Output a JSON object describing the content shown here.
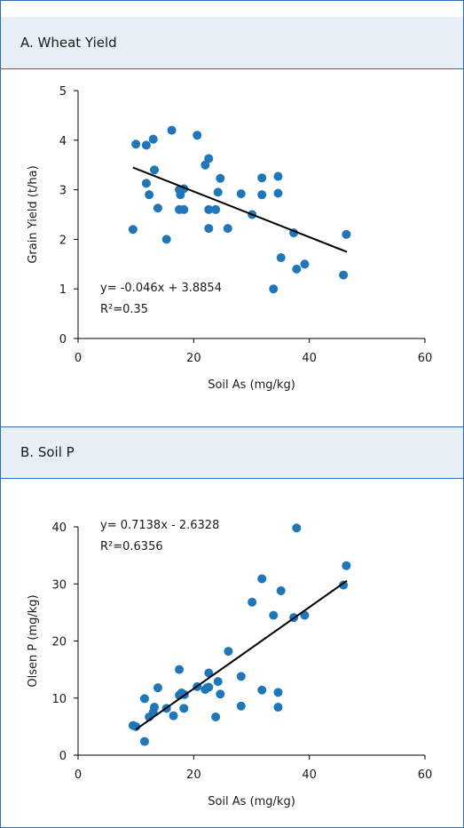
{
  "colors": {
    "points": "#1f76b9",
    "line": "#000000",
    "header_bg": "#e8eff7",
    "border": "#2e6db4"
  },
  "chart_data": [
    {
      "type": "scatter",
      "title": "A. Wheat Yield",
      "xlabel": "Soil As (mg/kg)",
      "ylabel": "Grain Yield (t/ha)",
      "xlim": [
        0,
        60
      ],
      "ylim": [
        0,
        5
      ],
      "xticks": [
        "0",
        "20",
        "40",
        "60"
      ],
      "yticks": [
        "0",
        "1",
        "2",
        "3",
        "4",
        "5"
      ],
      "grid": false,
      "trendline": {
        "slope": -0.046,
        "intercept": 3.8854,
        "x_range": [
          9.5,
          46.5
        ]
      },
      "annotations": [
        "y= -0.046x + 3.8854",
        "R²=0.35"
      ],
      "points": [
        [
          9.5,
          2.2
        ],
        [
          10,
          3.92
        ],
        [
          11.8,
          3.9
        ],
        [
          11.8,
          3.13
        ],
        [
          12.3,
          2.9
        ],
        [
          13,
          4.02
        ],
        [
          13.2,
          3.4
        ],
        [
          13.8,
          2.63
        ],
        [
          15.3,
          2.0
        ],
        [
          16.2,
          4.2
        ],
        [
          17.5,
          3.0
        ],
        [
          17.5,
          2.6
        ],
        [
          17.7,
          2.9
        ],
        [
          18.3,
          3.02
        ],
        [
          18.3,
          2.6
        ],
        [
          20.6,
          4.1
        ],
        [
          22,
          3.5
        ],
        [
          22.6,
          3.63
        ],
        [
          22.6,
          2.6
        ],
        [
          22.6,
          2.22
        ],
        [
          23.8,
          2.6
        ],
        [
          24.2,
          2.95
        ],
        [
          24.6,
          3.23
        ],
        [
          25.9,
          2.22
        ],
        [
          28.2,
          2.92
        ],
        [
          30.1,
          2.5
        ],
        [
          31.8,
          3.24
        ],
        [
          31.8,
          2.9
        ],
        [
          33.8,
          1.0
        ],
        [
          34.6,
          3.27
        ],
        [
          34.6,
          2.93
        ],
        [
          35.1,
          1.63
        ],
        [
          37.3,
          2.13
        ],
        [
          37.8,
          1.4
        ],
        [
          39.2,
          1.5
        ],
        [
          45.9,
          1.28
        ],
        [
          46.4,
          2.1
        ]
      ]
    },
    {
      "type": "scatter",
      "title": "B. Soil P",
      "xlabel": "Soil As (mg/kg)",
      "ylabel": "Olsen P (mg/kg)",
      "xlim": [
        0,
        60
      ],
      "ylim": [
        0,
        40
      ],
      "xticks": [
        "0",
        "20",
        "40",
        "60"
      ],
      "yticks": [
        "0",
        "10",
        "20",
        "30",
        "40"
      ],
      "grid": false,
      "trendline": {
        "slope": 0.7138,
        "intercept": -2.6328,
        "x_range": [
          10,
          46.5
        ]
      },
      "annotations": [
        "y= 0.7138x - 2.6328",
        "R²=0.6356"
      ],
      "points": [
        [
          9.5,
          5.2
        ],
        [
          10,
          5.0
        ],
        [
          11.5,
          2.4
        ],
        [
          11.5,
          9.9
        ],
        [
          12.3,
          6.7
        ],
        [
          13,
          7.5
        ],
        [
          13.2,
          8.4
        ],
        [
          13.8,
          11.8
        ],
        [
          15.3,
          8.2
        ],
        [
          16.5,
          6.9
        ],
        [
          17.5,
          15.0
        ],
        [
          17.5,
          10.5
        ],
        [
          17.9,
          10.9
        ],
        [
          18.3,
          8.2
        ],
        [
          18.4,
          10.6
        ],
        [
          20.6,
          12.0
        ],
        [
          22,
          11.5
        ],
        [
          22.3,
          11.8
        ],
        [
          22.6,
          14.4
        ],
        [
          22.6,
          11.9
        ],
        [
          23.8,
          6.7
        ],
        [
          24.2,
          12.9
        ],
        [
          24.6,
          10.7
        ],
        [
          26,
          18.2
        ],
        [
          28.2,
          13.8
        ],
        [
          28.2,
          8.6
        ],
        [
          30.1,
          26.8
        ],
        [
          31.8,
          30.9
        ],
        [
          31.8,
          11.4
        ],
        [
          33.8,
          24.5
        ],
        [
          34.6,
          11.0
        ],
        [
          34.6,
          8.4
        ],
        [
          35.1,
          28.8
        ],
        [
          37.3,
          24.1
        ],
        [
          37.8,
          39.8
        ],
        [
          39.2,
          24.5
        ],
        [
          45.9,
          29.8
        ],
        [
          46.4,
          33.2
        ]
      ]
    }
  ]
}
